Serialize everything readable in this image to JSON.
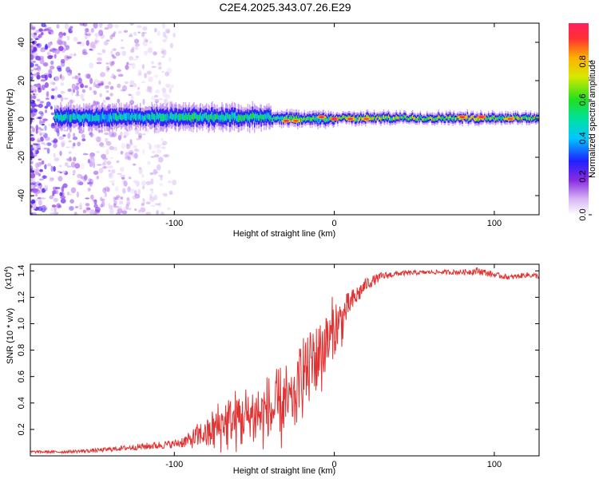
{
  "figure_title": "C2E4.2025.343.07.26.E29",
  "chart_data": [
    {
      "type": "heatmap",
      "name": "spectrogram",
      "title": "C2E4.2025.343.07.26.E29",
      "xlabel": "Height of straight line (km)",
      "ylabel": "Frequency (Hz)",
      "xlim": [
        -190,
        128
      ],
      "ylim": [
        -50,
        50
      ],
      "x_ticks": [
        -100,
        0,
        100
      ],
      "y_ticks": [
        -40,
        -20,
        0,
        20,
        40
      ],
      "colorbar": {
        "label": "Normalized spectral amplitude",
        "range": [
          0.0,
          1.0
        ],
        "ticks": [
          "0.0",
          "0.2",
          "0.4",
          "0.6",
          "0.8"
        ],
        "tick_values": [
          0.0,
          0.2,
          0.4,
          0.6,
          0.8
        ]
      },
      "ridge": {
        "description": "energy concentrated near 0 Hz across height",
        "segments": [
          {
            "x_start": -175,
            "x_end": -100,
            "center_hz": 1,
            "half_width_hz": 4,
            "level": 0.45
          },
          {
            "x_start": -100,
            "x_end": -40,
            "center_hz": 1,
            "half_width_hz": 4,
            "level": 0.5
          },
          {
            "x_start": -40,
            "x_end": 0,
            "center_hz": 0,
            "half_width_hz": 2.5,
            "level": 0.55
          },
          {
            "x_start": 0,
            "x_end": 128,
            "center_hz": 0.5,
            "half_width_hz": 2,
            "level": 0.65
          }
        ],
        "hot_spots": [
          {
            "x": -30,
            "y": -1,
            "level": 0.95
          },
          {
            "x": -24,
            "y": -1,
            "level": 0.9
          },
          {
            "x": -8,
            "y": 1,
            "level": 0.95
          },
          {
            "x": 0,
            "y": 0,
            "level": 1.0
          },
          {
            "x": 10,
            "y": 0,
            "level": 0.92
          },
          {
            "x": 20,
            "y": 0,
            "level": 0.9
          },
          {
            "x": 80,
            "y": 1,
            "level": 0.95
          },
          {
            "x": 92,
            "y": 1,
            "level": 1.0
          },
          {
            "x": 110,
            "y": 0,
            "level": 0.9
          }
        ],
        "noise_region_x": [
          -190,
          -100
        ]
      }
    },
    {
      "type": "line",
      "name": "snr",
      "xlabel": "Height of straight line (km)",
      "ylabel": "SNR (10 * v/v)",
      "y_scale_label": "(x10",
      "y_scale_exponent": "4",
      "y_multiplier": 10000,
      "xlim": [
        -190,
        128
      ],
      "ylim": [
        0,
        1.45
      ],
      "x_ticks": [
        -100,
        0,
        100
      ],
      "y_ticks": [
        0.2,
        0.4,
        0.6,
        0.8,
        1.0,
        1.2,
        1.4
      ],
      "color": "#e23232",
      "series": [
        {
          "name": "SNR",
          "envelope_x": [
            -190,
            -170,
            -150,
            -130,
            -110,
            -100,
            -90,
            -80,
            -70,
            -60,
            -50,
            -40,
            -30,
            -25,
            -20,
            -10,
            0,
            10,
            20,
            30,
            40,
            60,
            80,
            90,
            100,
            110,
            120,
            128
          ],
          "envelope_mean": [
            0.03,
            0.03,
            0.04,
            0.06,
            0.08,
            0.09,
            0.12,
            0.18,
            0.26,
            0.3,
            0.33,
            0.36,
            0.4,
            0.45,
            0.65,
            0.8,
            0.95,
            1.15,
            1.3,
            1.36,
            1.38,
            1.39,
            1.39,
            1.4,
            1.37,
            1.35,
            1.37,
            1.36
          ],
          "envelope_amp": [
            0.01,
            0.01,
            0.015,
            0.02,
            0.03,
            0.03,
            0.06,
            0.15,
            0.22,
            0.26,
            0.28,
            0.3,
            0.36,
            0.28,
            0.35,
            0.4,
            0.3,
            0.1,
            0.05,
            0.03,
            0.02,
            0.015,
            0.02,
            0.03,
            0.02,
            0.02,
            0.02,
            0.02
          ]
        }
      ]
    }
  ]
}
